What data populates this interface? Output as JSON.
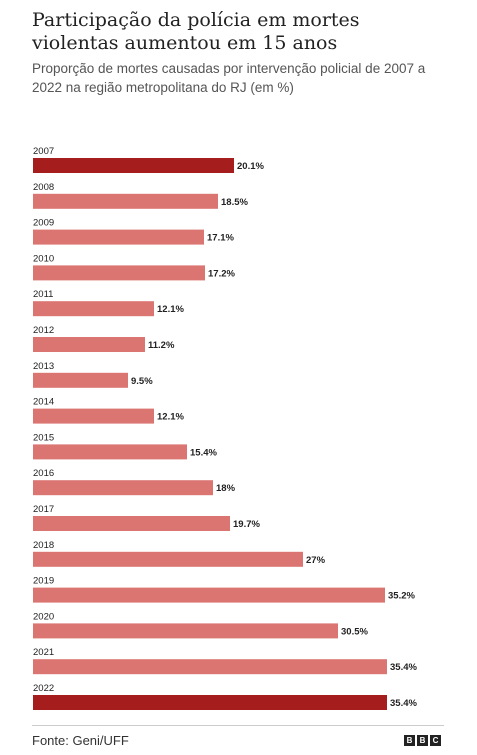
{
  "title": "Participação da polícia em mortes violentas aumentou em 15 anos",
  "subtitle": "Proporção de mortes causadas por intervenção policial de 2007 a 2022 na região metropolitana do RJ (em %)",
  "source": "Fonte: Geni/UFF",
  "logo_letters": [
    "B",
    "B",
    "C"
  ],
  "colors": {
    "highlight": "#a51d1d",
    "bar": "#da7572"
  },
  "chart_data": {
    "type": "bar",
    "orientation": "horizontal",
    "categories": [
      "2007",
      "2008",
      "2009",
      "2010",
      "2011",
      "2012",
      "2013",
      "2014",
      "2015",
      "2016",
      "2017",
      "2018",
      "2019",
      "2020",
      "2021",
      "2022"
    ],
    "values": [
      20.1,
      18.5,
      17.1,
      17.2,
      12.1,
      11.2,
      9.5,
      12.1,
      15.4,
      18,
      19.7,
      27,
      35.2,
      30.5,
      35.4,
      35.4
    ],
    "labels": [
      "20.1%",
      "18.5%",
      "17.1%",
      "17.2%",
      "12.1%",
      "11.2%",
      "9.5%",
      "12.1%",
      "15.4%",
      "18%",
      "19.7%",
      "27%",
      "35.2%",
      "30.5%",
      "35.4%",
      "35.4%"
    ],
    "highlighted": [
      "2007",
      "2022"
    ],
    "title": "Participação da polícia em mortes violentas aumentou em 15 anos",
    "xlabel": "",
    "ylabel": "",
    "grid": false
  }
}
